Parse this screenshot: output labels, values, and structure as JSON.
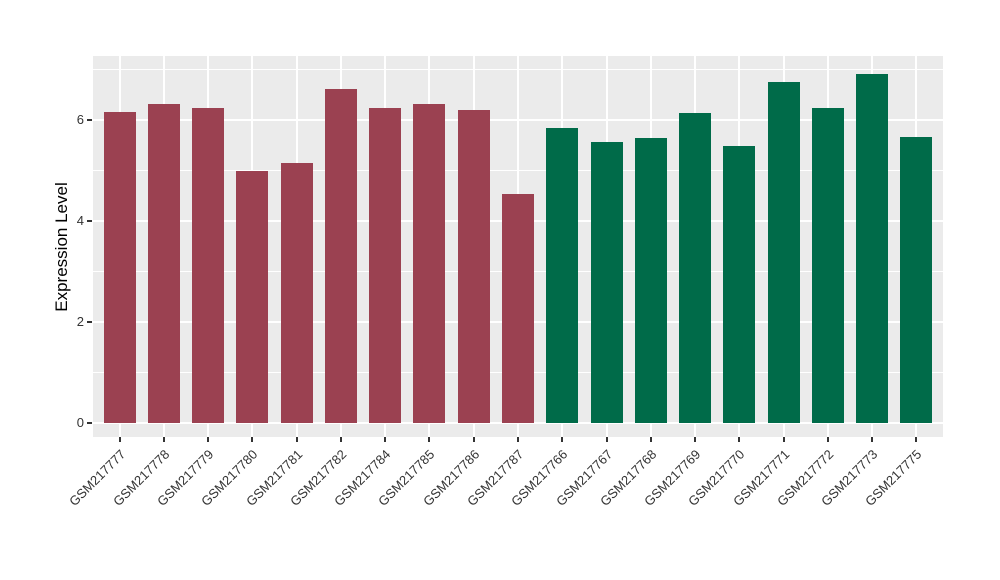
{
  "figure": {
    "background_color": "#FFFFFF",
    "panel_background_color": "#EBEBEB",
    "gridline_color": "#FFFFFF",
    "axis_text_color": "#333333"
  },
  "chart_data": {
    "type": "bar",
    "title": "",
    "xlabel": "",
    "ylabel": "Expression Level",
    "ylim": [
      0,
      7.27
    ],
    "yticks": [
      0,
      2,
      4,
      6
    ],
    "minor_gridlines": [
      1,
      3,
      5,
      7
    ],
    "grid": true,
    "legend_position": "none",
    "x_tick_rotation_degrees": 45,
    "categories": [
      "GSM217777",
      "GSM217778",
      "GSM217779",
      "GSM217780",
      "GSM217781",
      "GSM217782",
      "GSM217784",
      "GSM217785",
      "GSM217786",
      "GSM217787",
      "GSM217766",
      "GSM217767",
      "GSM217768",
      "GSM217769",
      "GSM217770",
      "GSM217771",
      "GSM217772",
      "GSM217773",
      "GSM217775"
    ],
    "values": [
      6.15,
      6.32,
      6.24,
      5.0,
      5.14,
      6.62,
      6.24,
      6.32,
      6.2,
      4.54,
      5.85,
      5.56,
      5.64,
      6.13,
      5.48,
      6.75,
      6.24,
      6.92,
      5.66
    ],
    "groups": [
      "group1",
      "group1",
      "group1",
      "group1",
      "group1",
      "group1",
      "group1",
      "group1",
      "group1",
      "group1",
      "group2",
      "group2",
      "group2",
      "group2",
      "group2",
      "group2",
      "group2",
      "group2",
      "group2"
    ],
    "group_colors": {
      "group1": "#9B4151",
      "group2": "#006B49"
    }
  }
}
